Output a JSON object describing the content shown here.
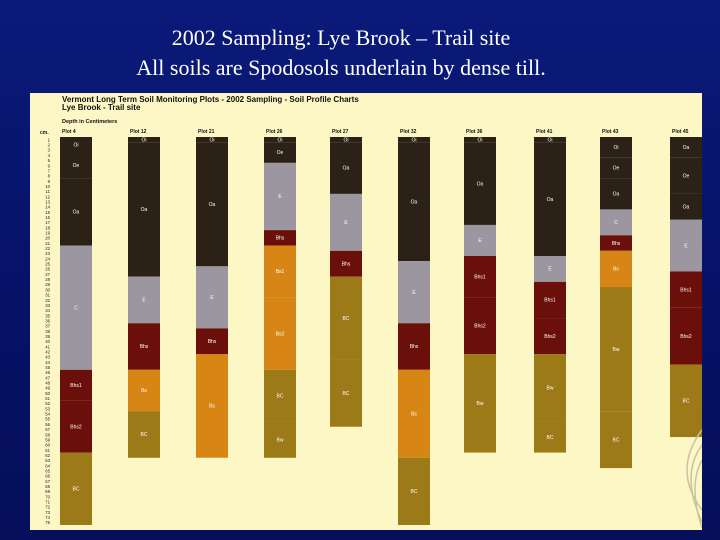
{
  "slide": {
    "title_line_1": "2002 Sampling: Lye Brook – Trail site",
    "title_line_2": "All soils are Spodosols underlain by dense till."
  },
  "colors": {
    "background": "#061266",
    "panel": "#fdf6c5",
    "Oi": "#2b2116",
    "Oe": "#2b2116",
    "Oa": "#2b2116",
    "E": "#9c96a0",
    "Bhs": "#6b0f0a",
    "Bs": "#d78616",
    "BC": "#9c7a18",
    "C": "#9c96a0",
    "Cd": "#9c7a18",
    "Bw": "#9c7a18"
  },
  "chart_data": {
    "type": "bar",
    "title": "Vermont Long Term Soil Monitoring Plots - 2002 Sampling - Soil Profile Charts",
    "subtitle": "Lye Brook - Trail site",
    "ylabel": "Depth in Centimeters",
    "yaxis_header": "cm.",
    "ylim": [
      0,
      75
    ],
    "yticks": [
      1,
      2,
      3,
      4,
      5,
      6,
      7,
      8,
      9,
      10,
      11,
      12,
      13,
      14,
      15,
      16,
      17,
      18,
      19,
      20,
      21,
      22,
      23,
      24,
      25,
      26,
      27,
      28,
      29,
      30,
      31,
      32,
      33,
      34,
      35,
      36,
      37,
      38,
      39,
      40,
      41,
      42,
      43,
      44,
      45,
      46,
      47,
      48,
      49,
      50,
      51,
      52,
      53,
      54,
      55,
      56,
      57,
      58,
      59,
      60,
      61,
      62,
      63,
      64,
      65,
      66,
      67,
      68,
      69,
      70,
      71,
      72,
      73,
      74,
      75
    ],
    "categories": [
      "Plot 4",
      "Plot 12",
      "Plot 21",
      "Plot 26",
      "Plot 27",
      "Plot 32",
      "Plot 36",
      "Plot 41",
      "Plot 43",
      "Plot 45"
    ],
    "profiles": [
      {
        "plot": "Plot 4",
        "layers": [
          {
            "label": "Oi",
            "top": 0,
            "bottom": 3
          },
          {
            "label": "Oe",
            "top": 3,
            "bottom": 8
          },
          {
            "label": "Oa",
            "top": 8,
            "bottom": 21
          },
          {
            "label": "C",
            "top": 21,
            "bottom": 45
          },
          {
            "label": "Bhs1",
            "top": 45,
            "bottom": 51
          },
          {
            "label": "Bhs2",
            "top": 51,
            "bottom": 61
          },
          {
            "label": "BC",
            "top": 61,
            "bottom": 75
          }
        ]
      },
      {
        "plot": "Plot 12",
        "layers": [
          {
            "label": "Oi",
            "top": 0,
            "bottom": 1
          },
          {
            "label": "Oa",
            "top": 1,
            "bottom": 27
          },
          {
            "label": "E",
            "top": 27,
            "bottom": 36
          },
          {
            "label": "Bhs",
            "top": 36,
            "bottom": 45
          },
          {
            "label": "Bs",
            "top": 45,
            "bottom": 53
          },
          {
            "label": "BC",
            "top": 53,
            "bottom": 62
          }
        ]
      },
      {
        "plot": "Plot 21",
        "layers": [
          {
            "label": "Oi",
            "top": 0,
            "bottom": 1
          },
          {
            "label": "Oa",
            "top": 1,
            "bottom": 25
          },
          {
            "label": "E",
            "top": 25,
            "bottom": 37
          },
          {
            "label": "Bhs",
            "top": 37,
            "bottom": 42
          },
          {
            "label": "Bs",
            "top": 42,
            "bottom": 62
          }
        ]
      },
      {
        "plot": "Plot 26",
        "layers": [
          {
            "label": "Oi",
            "top": 0,
            "bottom": 1
          },
          {
            "label": "Oe",
            "top": 1,
            "bottom": 5
          },
          {
            "label": "E",
            "top": 5,
            "bottom": 18
          },
          {
            "label": "Bhs",
            "top": 18,
            "bottom": 21
          },
          {
            "label": "Bs1",
            "top": 21,
            "bottom": 31
          },
          {
            "label": "Bs2",
            "top": 31,
            "bottom": 45
          },
          {
            "label": "BC",
            "top": 45,
            "bottom": 55
          },
          {
            "label": "Bw",
            "top": 55,
            "bottom": 62
          }
        ]
      },
      {
        "plot": "Plot 27",
        "layers": [
          {
            "label": "Oi",
            "top": 0,
            "bottom": 1
          },
          {
            "label": "Oa",
            "top": 1,
            "bottom": 11
          },
          {
            "label": "E",
            "top": 11,
            "bottom": 22
          },
          {
            "label": "Bhs",
            "top": 22,
            "bottom": 27
          },
          {
            "label": "BC",
            "top": 27,
            "bottom": 43
          },
          {
            "label": "BC",
            "top": 43,
            "bottom": 56
          }
        ]
      },
      {
        "plot": "Plot 32",
        "layers": [
          {
            "label": "Oi",
            "top": 0,
            "bottom": 1
          },
          {
            "label": "Oa",
            "top": 1,
            "bottom": 24
          },
          {
            "label": "E",
            "top": 24,
            "bottom": 36
          },
          {
            "label": "Bhs",
            "top": 36,
            "bottom": 45
          },
          {
            "label": "Bs",
            "top": 45,
            "bottom": 62
          },
          {
            "label": "BC",
            "top": 62,
            "bottom": 75
          }
        ]
      },
      {
        "plot": "Plot 36",
        "layers": [
          {
            "label": "Oi",
            "top": 0,
            "bottom": 1
          },
          {
            "label": "Oa",
            "top": 1,
            "bottom": 17
          },
          {
            "label": "E",
            "top": 17,
            "bottom": 23
          },
          {
            "label": "Bhs1",
            "top": 23,
            "bottom": 31
          },
          {
            "label": "Bhs2",
            "top": 31,
            "bottom": 42
          },
          {
            "label": "Bw",
            "top": 42,
            "bottom": 61
          }
        ]
      },
      {
        "plot": "Plot 41",
        "layers": [
          {
            "label": "Oi",
            "top": 0,
            "bottom": 1
          },
          {
            "label": "Oa",
            "top": 1,
            "bottom": 23
          },
          {
            "label": "E",
            "top": 23,
            "bottom": 28
          },
          {
            "label": "Bhs1",
            "top": 28,
            "bottom": 35
          },
          {
            "label": "Bhs2",
            "top": 35,
            "bottom": 42
          },
          {
            "label": "Bw",
            "top": 42,
            "bottom": 55
          },
          {
            "label": "BC",
            "top": 55,
            "bottom": 61
          }
        ]
      },
      {
        "plot": "Plot 43",
        "layers": [
          {
            "label": "Oi",
            "top": 0,
            "bottom": 4
          },
          {
            "label": "Oe",
            "top": 4,
            "bottom": 8
          },
          {
            "label": "Oa",
            "top": 8,
            "bottom": 14
          },
          {
            "label": "C",
            "top": 14,
            "bottom": 19
          },
          {
            "label": "Bhs",
            "top": 19,
            "bottom": 22
          },
          {
            "label": "Bs",
            "top": 22,
            "bottom": 29
          },
          {
            "label": "Bw",
            "top": 29,
            "bottom": 53
          },
          {
            "label": "BC",
            "top": 53,
            "bottom": 64
          }
        ]
      },
      {
        "plot": "Plot 45",
        "layers": [
          {
            "label": "Oa",
            "top": 0,
            "bottom": 4
          },
          {
            "label": "Oe",
            "top": 4,
            "bottom": 11
          },
          {
            "label": "Oa",
            "top": 11,
            "bottom": 16
          },
          {
            "label": "E",
            "top": 16,
            "bottom": 26
          },
          {
            "label": "Bhs1",
            "top": 26,
            "bottom": 33
          },
          {
            "label": "Bhs2",
            "top": 33,
            "bottom": 44
          },
          {
            "label": "BC",
            "top": 44,
            "bottom": 58
          }
        ]
      }
    ]
  }
}
